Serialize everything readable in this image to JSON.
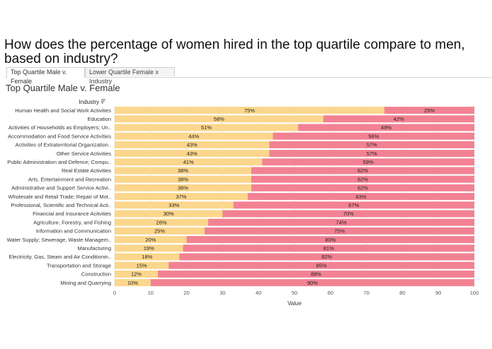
{
  "title": "How does the percentage of women hired in the top quartile compare to men, based on industry?",
  "tabs": [
    {
      "label": "Top Quartile Male v. Female"
    },
    {
      "label": "Lower Quartile Female x Industry"
    }
  ],
  "sheet_title": "Top Quartile Male v. Female",
  "colors": {
    "male": "#fbd68c",
    "female": "#f28293",
    "grid": "#e6e6e6"
  },
  "chart_data": {
    "type": "bar",
    "orientation": "horizontal",
    "stacked": true,
    "row_header": "Industry",
    "xlabel": "Value",
    "xlim": [
      0,
      100
    ],
    "xticks": [
      0,
      10,
      20,
      30,
      40,
      50,
      60,
      70,
      80,
      90,
      100
    ],
    "categories": [
      "Human Health and Social Work Activities",
      "Education",
      "Activities of Households as Employers; Un..",
      "Accommodation and Food Service Activities",
      "Activities of Extraterritorial Organization..",
      "Other Service Activities",
      "Public Administration and Defence; Compu..",
      "Real Estate Activities",
      "Arts, Entertainment and Recreation",
      "Administrative and Support Service Activi..",
      "Wholesale and Retail Trade; Repair of Mot..",
      "Professional, Scientific and Technical Acti..",
      "Financial and Insurance Acitvities",
      "Agriculture, Forestry, and Fishing",
      "Information and Communication",
      "Water Supply; Sewerage, Waste Managem..",
      "Manufacturing",
      "Electricity, Gas, Steam and Air Conditionin..",
      "Transportation and Storage",
      "Construction",
      "Mining and Quarrying"
    ],
    "series": [
      {
        "name": "Female",
        "values": [
          75,
          58,
          51,
          44,
          43,
          43,
          41,
          38,
          38,
          38,
          37,
          33,
          30,
          26,
          25,
          20,
          19,
          18,
          15,
          12,
          10
        ],
        "labels": [
          "75%",
          "58%",
          "51%",
          "44%",
          "43%",
          "43%",
          "41%",
          "38%",
          "38%",
          "38%",
          "37%",
          "33%",
          "30%",
          "26%",
          "25%",
          "20%",
          "19%",
          "18%",
          "15%",
          "12%",
          "10%"
        ]
      },
      {
        "name": "Male",
        "values": [
          25,
          42,
          49,
          56,
          57,
          57,
          59,
          62,
          62,
          62,
          63,
          67,
          70,
          74,
          75,
          80,
          81,
          82,
          85,
          88,
          90
        ],
        "labels": [
          "25%",
          "42%",
          "49%",
          "56%",
          "57%",
          "57%",
          "59%",
          "62%",
          "62%",
          "62%",
          "63%",
          "67%",
          "70%",
          "74%",
          "75%",
          "80%",
          "81%",
          "82%",
          "85%",
          "88%",
          "90%"
        ]
      }
    ]
  }
}
